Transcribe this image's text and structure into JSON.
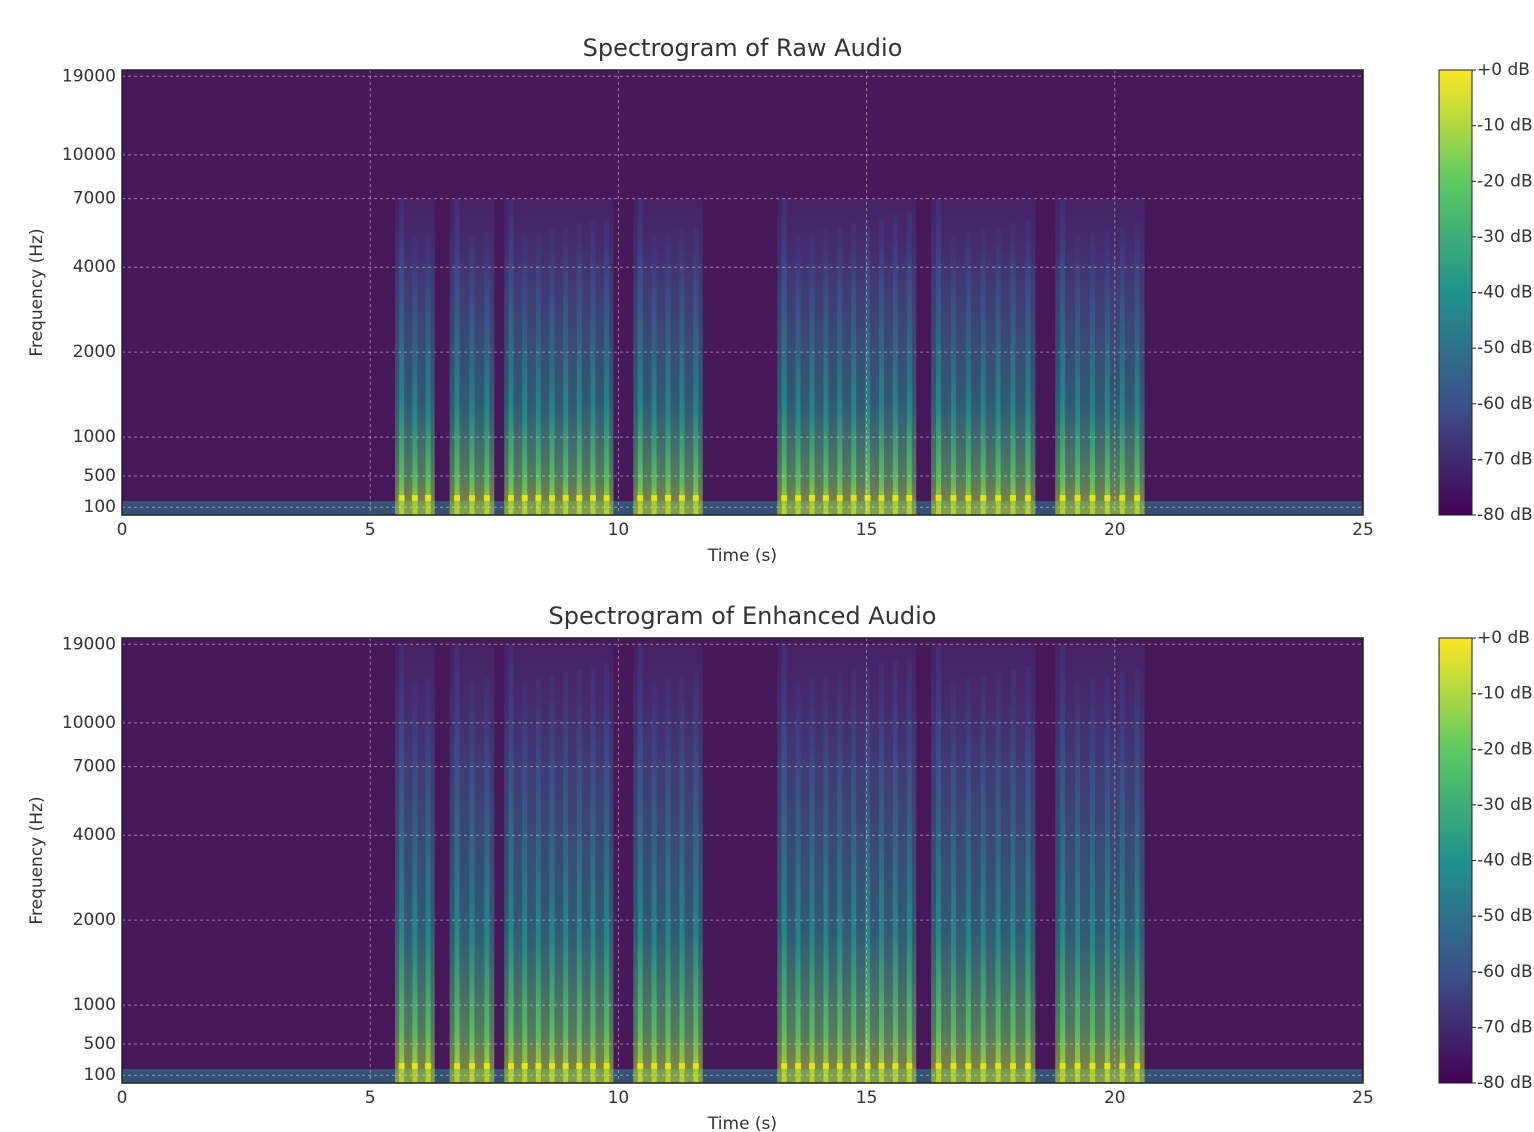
{
  "chart_data": [
    {
      "type": "spectrogram",
      "title": "Spectrogram of Raw Audio",
      "x_label": "Time (s)",
      "y_label": "Frequency (Hz)",
      "xlim": [
        0,
        25
      ],
      "xticks": [
        0,
        5,
        10,
        15,
        20,
        25
      ],
      "ylim": [
        0,
        20000
      ],
      "yscale": "symlog",
      "linthresh": 1000,
      "yticks": [
        100,
        500,
        1000,
        2000,
        4000,
        7000,
        10000,
        19000
      ],
      "grid": true,
      "colormap": "viridis",
      "clim": [
        -80,
        0
      ],
      "cticks": [
        {
          "value": 0,
          "label": "+0 dB"
        },
        {
          "value": -10,
          "label": "-10 dB"
        },
        {
          "value": -20,
          "label": "-20 dB"
        },
        {
          "value": -30,
          "label": "-30 dB"
        },
        {
          "value": -40,
          "label": "-40 dB"
        },
        {
          "value": -50,
          "label": "-50 dB"
        },
        {
          "value": -60,
          "label": "-60 dB"
        },
        {
          "value": -70,
          "label": "-70 dB"
        },
        {
          "value": -80,
          "label": "-80 dB"
        }
      ],
      "speech_segments": [
        [
          5.5,
          6.3
        ],
        [
          6.6,
          7.5
        ],
        [
          7.7,
          9.9
        ],
        [
          10.3,
          11.7
        ],
        [
          13.2,
          16.0
        ],
        [
          16.3,
          18.4
        ],
        [
          18.8,
          20.6
        ]
      ],
      "speech_top": 7000
    },
    {
      "type": "spectrogram",
      "title": "Spectrogram of Enhanced Audio",
      "x_label": "Time (s)",
      "y_label": "Frequency (Hz)",
      "xlim": [
        0,
        25
      ],
      "xticks": [
        0,
        5,
        10,
        15,
        20,
        25
      ],
      "ylim": [
        0,
        20000
      ],
      "yscale": "symlog",
      "linthresh": 1000,
      "yticks": [
        100,
        500,
        1000,
        2000,
        4000,
        7000,
        10000,
        19000
      ],
      "grid": true,
      "colormap": "viridis",
      "clim": [
        -80,
        0
      ],
      "cticks": [
        {
          "value": 0,
          "label": "+0 dB"
        },
        {
          "value": -10,
          "label": "-10 dB"
        },
        {
          "value": -20,
          "label": "-20 dB"
        },
        {
          "value": -30,
          "label": "-30 dB"
        },
        {
          "value": -40,
          "label": "-40 dB"
        },
        {
          "value": -50,
          "label": "-50 dB"
        },
        {
          "value": -60,
          "label": "-60 dB"
        },
        {
          "value": -70,
          "label": "-70 dB"
        },
        {
          "value": -80,
          "label": "-80 dB"
        }
      ],
      "speech_segments": [
        [
          5.5,
          6.3
        ],
        [
          6.6,
          7.5
        ],
        [
          7.7,
          9.9
        ],
        [
          10.3,
          11.7
        ],
        [
          13.2,
          16.0
        ],
        [
          16.3,
          18.4
        ],
        [
          18.8,
          20.6
        ]
      ],
      "speech_top": 19000
    }
  ]
}
